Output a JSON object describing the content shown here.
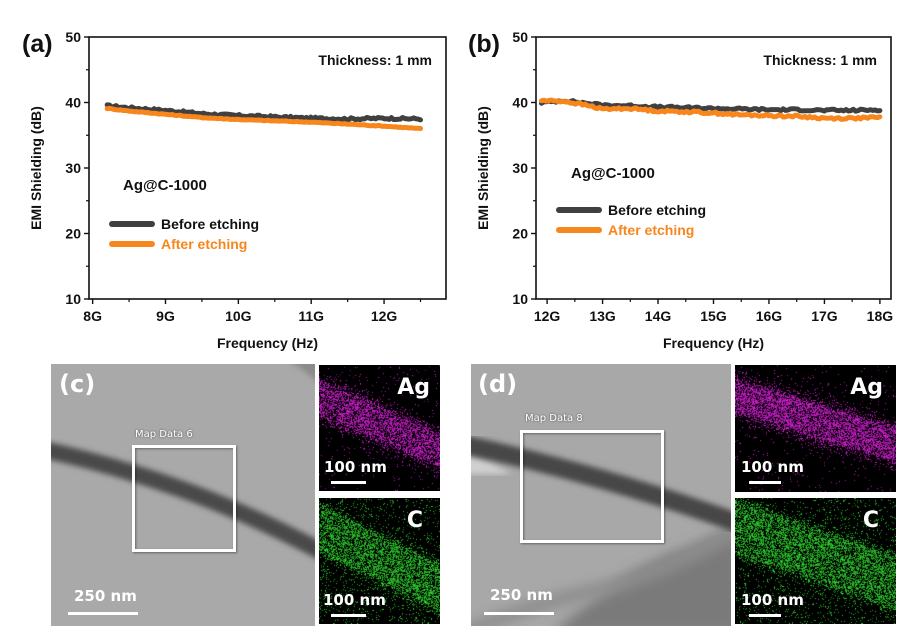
{
  "chart_data": [
    {
      "id": "a",
      "type": "line",
      "panel_label": "(a)",
      "title": "",
      "xlabel": "Frequency (Hz)",
      "ylabel": "EMI Shielding (dB)",
      "xlim": [
        7.95,
        12.85
      ],
      "ylim": [
        10,
        50
      ],
      "xticks": [
        8,
        9,
        10,
        11,
        12
      ],
      "xtick_labels": [
        "8G",
        "9G",
        "10G",
        "11G",
        "12G"
      ],
      "yticks": [
        10,
        20,
        30,
        40,
        50
      ],
      "ytick_labels": [
        "10",
        "20",
        "30",
        "40",
        "50"
      ],
      "annotations": {
        "thickness": "Thickness: 1 mm",
        "sample": "Ag@C-1000"
      },
      "legend_position": "center-left",
      "series": [
        {
          "name": "Before etching",
          "color": "#404040",
          "x": [
            8.2,
            8.5,
            9.0,
            9.5,
            10.0,
            10.5,
            11.0,
            11.5,
            12.0,
            12.5
          ],
          "y": [
            39.5,
            39.2,
            38.8,
            38.3,
            38.0,
            37.8,
            37.6,
            37.5,
            37.6,
            37.5
          ]
        },
        {
          "name": "After etching",
          "color": "#f7861d",
          "x": [
            8.2,
            8.5,
            9.0,
            9.5,
            10.0,
            10.5,
            11.0,
            11.5,
            12.0,
            12.5
          ],
          "y": [
            39.1,
            38.7,
            38.2,
            37.7,
            37.4,
            37.2,
            37.0,
            36.7,
            36.4,
            36.0
          ]
        }
      ]
    },
    {
      "id": "b",
      "type": "line",
      "panel_label": "(b)",
      "title": "",
      "xlabel": "Frequency (Hz)",
      "ylabel": "EMI Shielding (dB)",
      "xlim": [
        11.8,
        18.2
      ],
      "ylim": [
        10,
        50
      ],
      "xticks": [
        12,
        13,
        14,
        15,
        16,
        17,
        18
      ],
      "xtick_labels": [
        "12G",
        "13G",
        "14G",
        "15G",
        "16G",
        "17G",
        "18G"
      ],
      "yticks": [
        10,
        20,
        30,
        40,
        50
      ],
      "ytick_labels": [
        "10",
        "20",
        "30",
        "40",
        "50"
      ],
      "annotations": {
        "thickness": "Thickness: 1 mm",
        "sample": "Ag@C-1000"
      },
      "legend_position": "center-left",
      "series": [
        {
          "name": "Before etching",
          "color": "#404040",
          "x": [
            11.9,
            12.3,
            12.7,
            13.0,
            13.5,
            14.0,
            14.5,
            15.0,
            15.5,
            16.0,
            16.5,
            17.0,
            17.5,
            18.0
          ],
          "y": [
            40.0,
            40.3,
            39.9,
            39.6,
            39.5,
            39.3,
            39.2,
            39.1,
            39.0,
            38.9,
            38.9,
            38.8,
            38.8,
            38.9
          ]
        },
        {
          "name": "After etching",
          "color": "#f7861d",
          "x": [
            11.9,
            12.3,
            12.7,
            13.0,
            13.5,
            14.0,
            14.5,
            15.0,
            15.5,
            16.0,
            16.5,
            17.0,
            17.5,
            18.0
          ],
          "y": [
            40.3,
            40.2,
            39.6,
            39.0,
            39.1,
            38.7,
            38.6,
            38.4,
            38.1,
            38.0,
            37.9,
            37.6,
            37.6,
            37.7
          ]
        }
      ]
    }
  ],
  "images": {
    "c": {
      "panel_label": "(c)",
      "map_box_label": "Map Data 6",
      "main_scale": "250 nm",
      "maps": [
        {
          "element": "Ag",
          "scale": "100 nm",
          "color": "#e020e0"
        },
        {
          "element": "C",
          "scale": "100 nm",
          "color": "#30e030"
        }
      ]
    },
    "d": {
      "panel_label": "(d)",
      "map_box_label": "Map Data 8",
      "main_scale": "250 nm",
      "maps": [
        {
          "element": "Ag",
          "scale": "100 nm",
          "color": "#e020e0"
        },
        {
          "element": "C",
          "scale": "100 nm",
          "color": "#30e030"
        }
      ]
    }
  }
}
